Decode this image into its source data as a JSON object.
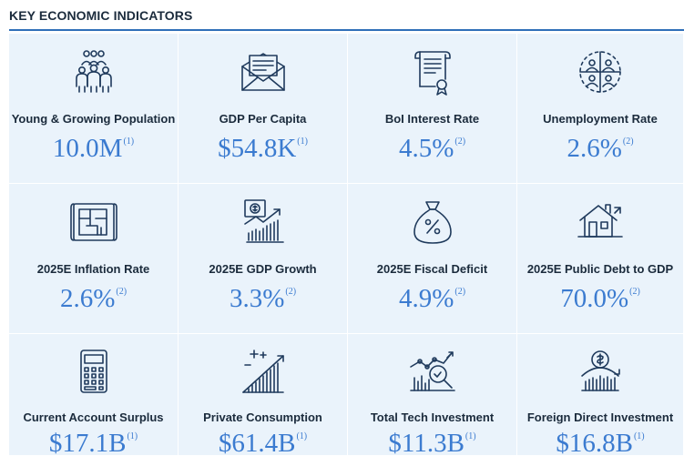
{
  "header": {
    "title": "KEY ECONOMIC INDICATORS"
  },
  "indicators": [
    {
      "label": "Young & Growing Population",
      "value": "10.0M",
      "note": "(1)",
      "icon": "people-group-icon"
    },
    {
      "label": "GDP Per Capita",
      "value": "$54.8K",
      "note": "(1)",
      "icon": "envelope-letter-icon"
    },
    {
      "label": "BoI Interest Rate",
      "value": "4.5%",
      "note": "(2)",
      "icon": "scroll-document-icon"
    },
    {
      "label": "Unemployment Rate",
      "value": "2.6%",
      "note": "(2)",
      "icon": "people-quadrant-icon"
    },
    {
      "label": "2025E Inflation Rate",
      "value": "2.6%",
      "note": "(2)",
      "icon": "blueprint-icon"
    },
    {
      "label": "2025E GDP Growth",
      "value": "3.3%",
      "note": "(2)",
      "icon": "growth-bars-icon"
    },
    {
      "label": "2025E Fiscal Deficit",
      "value": "4.9%",
      "note": "(2)",
      "icon": "money-bag-percent-icon"
    },
    {
      "label": "2025E Public Debt to GDP",
      "value": "70.0%",
      "note": "(2)",
      "icon": "house-icon"
    },
    {
      "label": "Current Account Surplus",
      "value": "$17.1B",
      "note": "(1)",
      "icon": "calculator-icon"
    },
    {
      "label": "Private Consumption",
      "value": "$61.4B",
      "note": "(1)",
      "icon": "rising-chart-icon"
    },
    {
      "label": "Total Tech Investment",
      "value": "$11.3B",
      "note": "(1)",
      "icon": "chart-magnifier-icon"
    },
    {
      "label": "Foreign Direct Investment",
      "value": "$16.8B",
      "note": "(1)",
      "icon": "dollar-coin-bars-icon"
    }
  ]
}
